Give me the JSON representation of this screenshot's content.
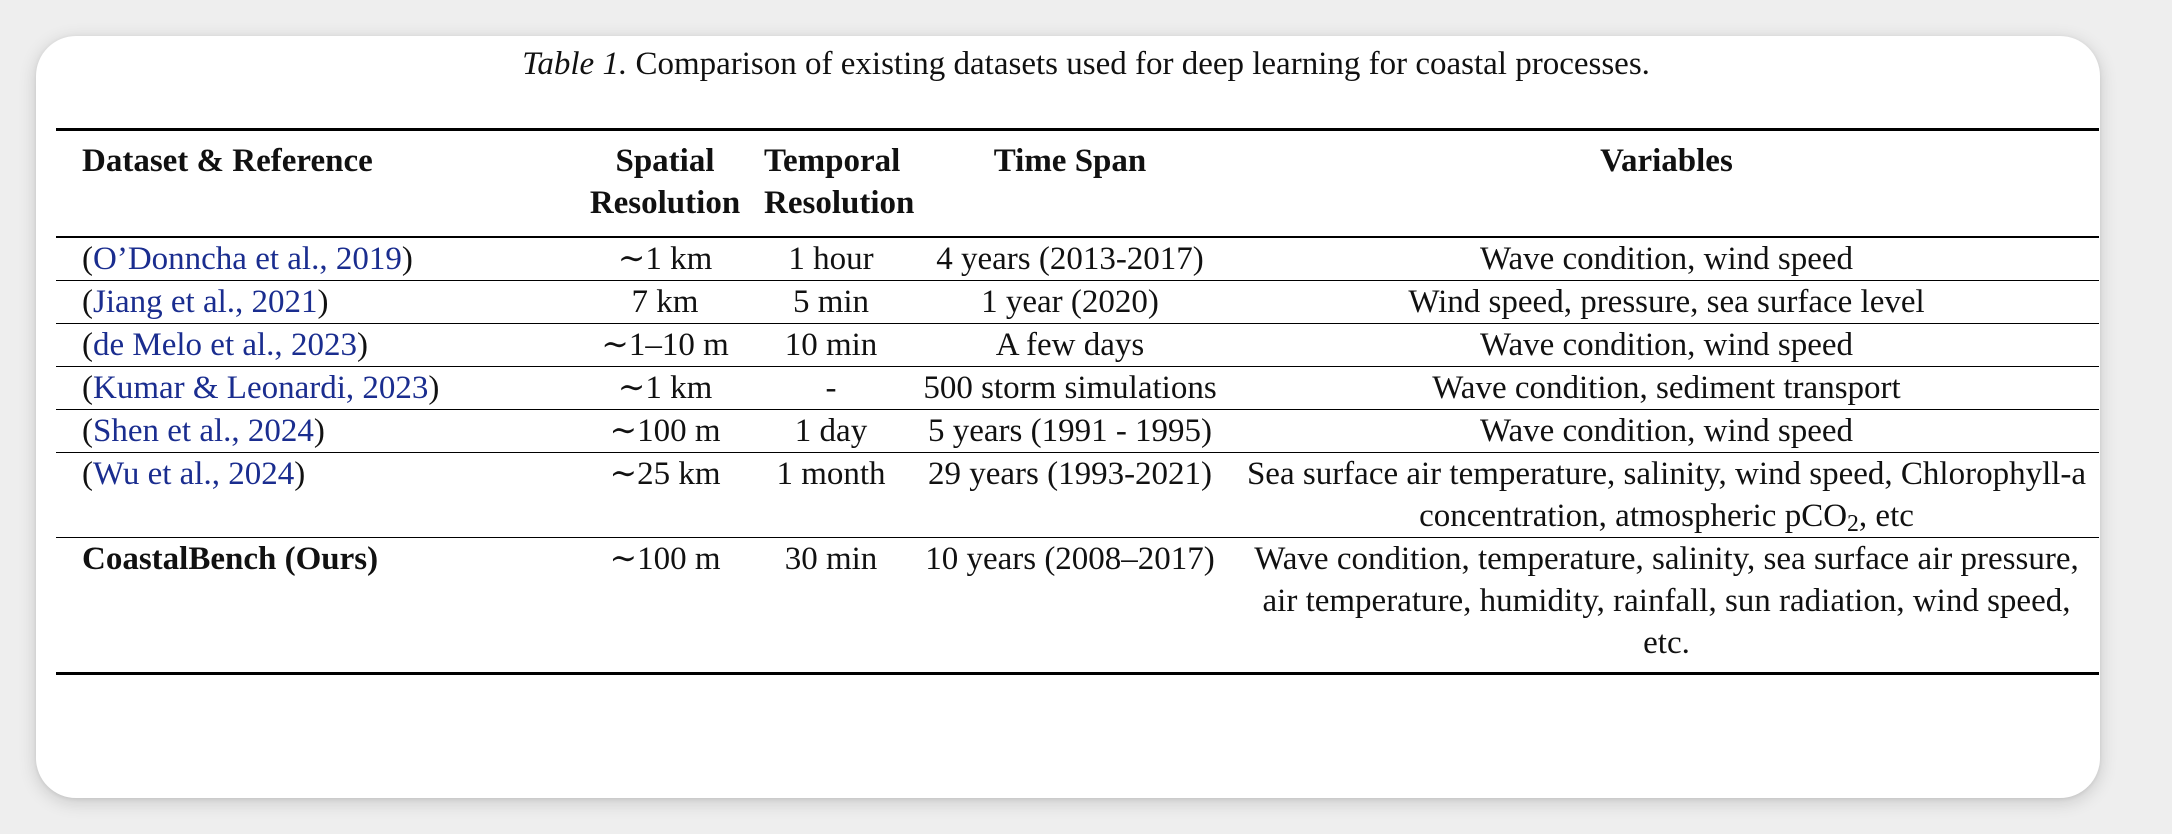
{
  "caption": {
    "label": "Table 1.",
    "text": "Comparison of existing datasets used for deep learning for coastal processes."
  },
  "headers": {
    "dataset": "Dataset & Reference",
    "spatial_1": "Spatial",
    "spatial_2": "Resolution",
    "temporal_1": "Temporal",
    "temporal_2": "Resolution",
    "time_span": "Time Span",
    "variables": "Variables"
  },
  "rows": [
    {
      "ref": "O’Donncha et al.,",
      "year": "2019",
      "spatial": "∼1 km",
      "temporal": "1 hour",
      "span": "4 years (2013-2017)",
      "variables": "Wave condition, wind speed"
    },
    {
      "ref": "Jiang et al.,",
      "year": "2021",
      "spatial": "7 km",
      "temporal": "5 min",
      "span": "1 year (2020)",
      "variables": "Wind speed, pressure, sea surface level"
    },
    {
      "ref": "de Melo et al.,",
      "year": "2023",
      "spatial": "∼1–10 m",
      "temporal": "10 min",
      "span": "A few days",
      "variables": "Wave condition, wind speed"
    },
    {
      "ref": "Kumar & Leonardi,",
      "year": "2023",
      "spatial": "∼1 km",
      "temporal": "-",
      "span": "500 storm simulations",
      "variables": "Wave condition, sediment transport"
    },
    {
      "ref": "Shen et al.,",
      "year": "2024",
      "spatial": "∼100 m",
      "temporal": "1 day",
      "span": "5 years (1991 - 1995)",
      "variables": "Wave condition, wind speed"
    },
    {
      "ref": "Wu et al.,",
      "year": "2024",
      "spatial": "∼25 km",
      "temporal": "1 month",
      "span": "29 years (1993-2021)",
      "variables_pre": "Sea surface air temperature, salinity, wind speed, Chlorophyll-a concentration, atmospheric pCO",
      "variables_sub": "2",
      "variables_post": ", etc"
    }
  ],
  "ours": {
    "name": "CoastalBench (Ours)",
    "spatial": "∼100 m",
    "temporal": "30 min",
    "span": "10 years (2008–2017)",
    "variables": "Wave condition, temperature, salinity, sea surface air pressure, air temperature, humidity, rainfall, sun radiation, wind speed, etc."
  },
  "colors": {
    "link": "#1a2d8f",
    "card": "#ffffff",
    "background": "#eeeeee"
  }
}
